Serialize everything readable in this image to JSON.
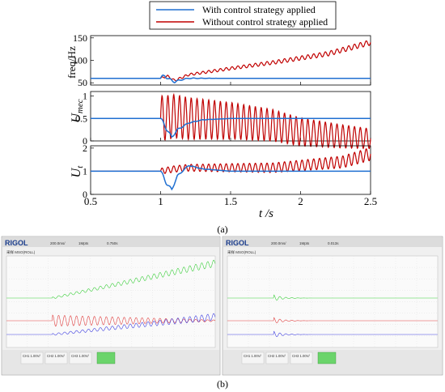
{
  "chart_data": [
    {
      "type": "line",
      "panel_label": "(a)",
      "xlabel": "t /s",
      "xlim": [
        0.5,
        2.5
      ],
      "xticks": [
        "0.5",
        "1",
        "1.5",
        "2",
        "2.5"
      ],
      "legend": {
        "placement": "top-center",
        "entries": [
          {
            "name": "With control strategy applied",
            "color": "#1f6fd1"
          },
          {
            "name": "Without control strategy applied",
            "color": "#c00000"
          }
        ]
      },
      "subplots": [
        {
          "ylabel": "freq/Hz",
          "ylim": [
            45,
            155
          ],
          "yticks": [
            "50",
            "100",
            "150"
          ],
          "series": [
            {
              "name": "With control strategy applied",
              "x": [
                0.5,
                1.0,
                1.03,
                1.06,
                1.1,
                1.15,
                1.2,
                1.3,
                2.5
              ],
              "y": [
                60,
                60,
                66,
                58,
                52,
                57,
                60,
                60,
                60
              ]
            },
            {
              "name": "Without control strategy applied",
              "x": [
                0.5,
                1.0,
                1.05,
                1.1,
                1.2,
                1.5,
                1.8,
                2.0,
                2.2,
                2.5
              ],
              "y": [
                60,
                60,
                65,
                55,
                68,
                82,
                95,
                105,
                115,
                140
              ]
            }
          ]
        },
        {
          "ylabel": "U_mec",
          "ylim": [
            0,
            1.1
          ],
          "yticks": [
            "0",
            "0.5",
            "1"
          ],
          "series": [
            {
              "name": "With control strategy applied",
              "x": [
                0.5,
                1.0,
                1.04,
                1.08,
                1.12,
                1.2,
                1.3,
                1.5,
                2.5
              ],
              "y": [
                0.5,
                0.5,
                0.28,
                0.08,
                0.25,
                0.4,
                0.47,
                0.5,
                0.5
              ]
            },
            {
              "name": "Without control strategy applied",
              "x": [
                0.5,
                1.0,
                1.1,
                1.2,
                1.5,
                1.8,
                2.0,
                2.3,
                2.5
              ],
              "y": [
                0.5,
                0.5,
                0.55,
                0.5,
                0.45,
                0.35,
                0.2,
                0.1,
                0.05
              ]
            }
          ]
        },
        {
          "ylabel": "U_t",
          "ylim": [
            0,
            2.1
          ],
          "yticks": [
            "0",
            "1",
            "2"
          ],
          "series": [
            {
              "name": "With control strategy applied",
              "x": [
                0.5,
                1.0,
                1.04,
                1.08,
                1.12,
                1.2,
                1.3,
                1.5,
                2.5
              ],
              "y": [
                1.0,
                1.0,
                0.5,
                0.2,
                0.8,
                1.25,
                1.1,
                1.0,
                1.0
              ]
            },
            {
              "name": "Without control strategy applied",
              "x": [
                0.5,
                1.0,
                1.1,
                1.2,
                1.5,
                1.8,
                2.0,
                2.3,
                2.5
              ],
              "y": [
                1.0,
                1.0,
                1.1,
                1.15,
                1.15,
                1.15,
                1.25,
                1.4,
                1.75
              ]
            }
          ]
        }
      ]
    },
    {
      "type": "line",
      "panel_label": "(b)",
      "description_free": true,
      "screens": [
        {
          "brand": "RIGOL",
          "toolbar": [
            "200.0ms/",
            "1Mpts",
            "0.750s"
          ],
          "status": "采样 MSO(ROLL)",
          "channels": [
            "CH1 1.00V/",
            "CH2 1.00V/",
            "CH3 1.00V/"
          ],
          "traces": [
            "green",
            "red",
            "blue"
          ]
        },
        {
          "brand": "RIGOL",
          "toolbar": [
            "200.0ms/",
            "1Mpts",
            "0.013s"
          ],
          "status": "采样 MSO(ROLL)",
          "channels": [
            "CH1 1.00V/",
            "CH2 1.00V/",
            "CH3 1.00V/"
          ],
          "traces": [
            "green",
            "red",
            "blue"
          ]
        }
      ]
    }
  ],
  "colors": {
    "blue": "#1f6fd1",
    "red": "#c00000",
    "scope_green": "#3ccf3c",
    "scope_red": "#e04040",
    "scope_blue": "#4040e0"
  }
}
